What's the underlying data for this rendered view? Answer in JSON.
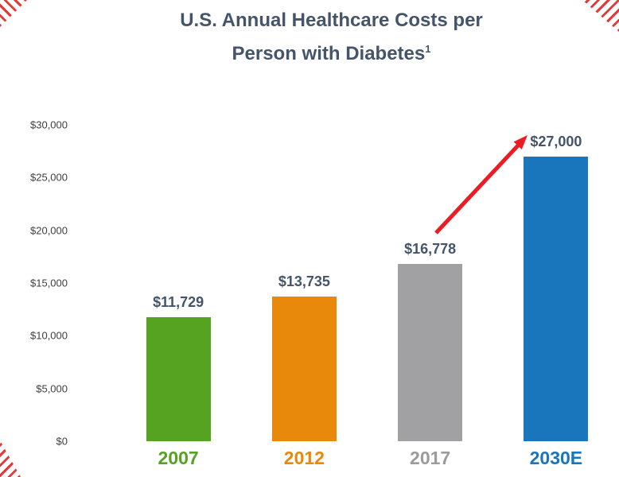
{
  "title": {
    "line1": "U.S. Annual Healthcare Costs per",
    "line2": "Person with Diabetes",
    "footnote_marker": "1"
  },
  "colors": {
    "title_text": "#44546A",
    "value_label_text": "#44546A",
    "tick_label_text": "#3F3F3F",
    "arrow": "#EC1C24",
    "corner_stripes": "#E23A3A"
  },
  "chart_data": {
    "type": "bar",
    "title": "U.S. Annual Healthcare Costs per Person with Diabetes¹",
    "categories": [
      "2007",
      "2012",
      "2017",
      "2030E"
    ],
    "values": [
      11729,
      13735,
      16778,
      27000
    ],
    "value_labels": [
      "$11,729",
      "$13,735",
      "$16,778",
      "$27,000"
    ],
    "bar_colors": [
      "#56A221",
      "#E8890B",
      "#A1A1A3",
      "#1975BC"
    ],
    "category_label_colors": [
      "#56A221",
      "#E8890B",
      "#9B9B9D",
      "#1975BC"
    ],
    "xlabel": "",
    "ylabel": "",
    "ylim": [
      0,
      30000
    ],
    "y_ticks": [
      0,
      5000,
      10000,
      15000,
      20000,
      25000,
      30000
    ],
    "y_tick_labels": [
      "$0",
      "$5,000",
      "$10,000",
      "$15,000",
      "$20,000",
      "$25,000",
      "$30,000"
    ],
    "grid": false,
    "legend": "none",
    "annotations": [
      "red arrow rising from above the 2017 bar toward the $27,000 label of the 2030E bar"
    ]
  }
}
